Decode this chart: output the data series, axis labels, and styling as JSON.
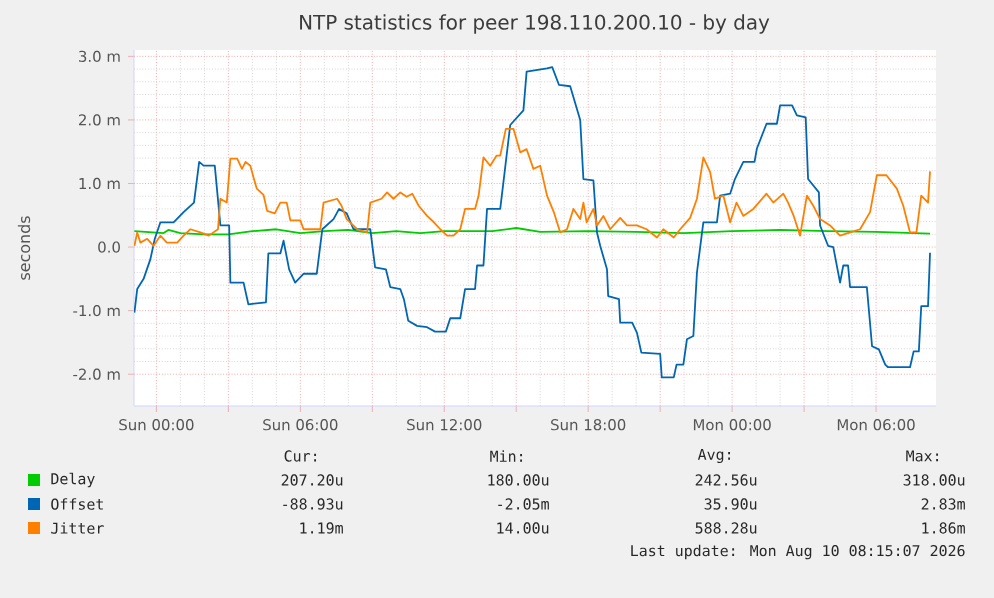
{
  "chart_data": {
    "type": "line",
    "title": "NTP statistics for peer 198.110.200.10 - by day",
    "ylabel": "seconds",
    "xlim": [
      "2026-08-08T23:04",
      "2026-08-10T08:30"
    ],
    "ylim": [
      -2.5,
      3.1
    ],
    "xticks": [
      {
        "value": "2026-08-09T00:00",
        "label": "Sun 00:00"
      },
      {
        "value": "2026-08-09T03:00",
        "label": null
      },
      {
        "value": "2026-08-09T06:00",
        "label": "Sun 06:00"
      },
      {
        "value": "2026-08-09T09:00",
        "label": null
      },
      {
        "value": "2026-08-09T12:00",
        "label": "Sun 12:00"
      },
      {
        "value": "2026-08-09T15:00",
        "label": null
      },
      {
        "value": "2026-08-09T18:00",
        "label": "Sun 18:00"
      },
      {
        "value": "2026-08-09T21:00",
        "label": null
      },
      {
        "value": "2026-08-10T00:00",
        "label": "Mon 00:00"
      },
      {
        "value": "2026-08-10T03:00",
        "label": null
      },
      {
        "value": "2026-08-10T06:00",
        "label": "Mon 06:00"
      }
    ],
    "yticks": [
      {
        "value": -2,
        "label": "-2.0 m"
      },
      {
        "value": -1,
        "label": "-1.0 m"
      },
      {
        "value": 0,
        "label": "0.0"
      },
      {
        "value": 1,
        "label": "1.0 m"
      },
      {
        "value": 2,
        "label": "2.0 m"
      },
      {
        "value": 3,
        "label": "3.0 m"
      }
    ],
    "grid": true,
    "legend": "bottom",
    "series": [
      {
        "name": "Delay",
        "color": "#00cc00",
        "x": [
          "2026-08-08T23:05",
          "2026-08-09T00:18",
          "2026-08-09T00:30",
          "2026-08-09T01:00",
          "2026-08-09T02:00",
          "2026-08-09T03:00",
          "2026-08-09T04:00",
          "2026-08-09T05:00",
          "2026-08-09T06:00",
          "2026-08-09T07:00",
          "2026-08-09T08:00",
          "2026-08-09T09:00",
          "2026-08-09T10:00",
          "2026-08-09T11:00",
          "2026-08-09T12:00",
          "2026-08-09T14:00",
          "2026-08-09T15:00",
          "2026-08-09T16:00",
          "2026-08-09T18:00",
          "2026-08-09T20:00",
          "2026-08-09T22:00",
          "2026-08-10T00:00",
          "2026-08-10T02:00",
          "2026-08-10T04:00",
          "2026-08-10T06:00",
          "2026-08-10T08:15"
        ],
        "values": [
          0.25,
          0.22,
          0.27,
          0.22,
          0.2,
          0.2,
          0.25,
          0.28,
          0.22,
          0.25,
          0.27,
          0.22,
          0.25,
          0.22,
          0.25,
          0.25,
          0.3,
          0.24,
          0.25,
          0.24,
          0.22,
          0.25,
          0.27,
          0.25,
          0.24,
          0.21
        ]
      },
      {
        "name": "Offset",
        "color": "#0066b3",
        "x": [
          "2026-08-08T23:05",
          "2026-08-08T23:12",
          "2026-08-08T23:28",
          "2026-08-08T23:45",
          "2026-08-08T23:56",
          "2026-08-09T00:10",
          "2026-08-09T00:43",
          "2026-08-09T01:08",
          "2026-08-09T01:34",
          "2026-08-09T01:47",
          "2026-08-09T01:58",
          "2026-08-09T02:26",
          "2026-08-09T02:40",
          "2026-08-09T03:02",
          "2026-08-09T03:05",
          "2026-08-09T03:38",
          "2026-08-09T03:50",
          "2026-08-09T04:34",
          "2026-08-09T04:40",
          "2026-08-09T05:10",
          "2026-08-09T05:18",
          "2026-08-09T05:32",
          "2026-08-09T05:47",
          "2026-08-09T06:08",
          "2026-08-09T06:41",
          "2026-08-09T06:55",
          "2026-08-09T07:23",
          "2026-08-09T07:37",
          "2026-08-09T07:56",
          "2026-08-09T08:13",
          "2026-08-09T08:55",
          "2026-08-09T09:07",
          "2026-08-09T09:34",
          "2026-08-09T09:45",
          "2026-08-09T10:10",
          "2026-08-09T10:19",
          "2026-08-09T10:30",
          "2026-08-09T10:52",
          "2026-08-09T11:17",
          "2026-08-09T11:37",
          "2026-08-09T12:04",
          "2026-08-09T12:15",
          "2026-08-09T12:40",
          "2026-08-09T12:52",
          "2026-08-09T13:17",
          "2026-08-09T13:22",
          "2026-08-09T13:38",
          "2026-08-09T13:47",
          "2026-08-09T14:20",
          "2026-08-09T14:28",
          "2026-08-09T14:45",
          "2026-08-09T15:18",
          "2026-08-09T15:26",
          "2026-08-09T16:17",
          "2026-08-09T16:30",
          "2026-08-09T16:47",
          "2026-08-09T17:15",
          "2026-08-09T17:40",
          "2026-08-09T17:48",
          "2026-08-09T18:13",
          "2026-08-09T18:22",
          "2026-08-09T18:30",
          "2026-08-09T18:47",
          "2026-08-09T18:50",
          "2026-08-09T19:17",
          "2026-08-09T19:20",
          "2026-08-09T19:50",
          "2026-08-09T20:02",
          "2026-08-09T20:13",
          "2026-08-09T21:00",
          "2026-08-09T21:04",
          "2026-08-09T21:34",
          "2026-08-09T21:41",
          "2026-08-09T21:58",
          "2026-08-09T22:07",
          "2026-08-09T22:23",
          "2026-08-09T22:32",
          "2026-08-09T22:48",
          "2026-08-09T23:22",
          "2026-08-09T23:30",
          "2026-08-09T23:55",
          "2026-08-10T00:07",
          "2026-08-10T00:28",
          "2026-08-10T00:56",
          "2026-08-10T01:02",
          "2026-08-10T01:26",
          "2026-08-10T01:52",
          "2026-08-10T02:00",
          "2026-08-10T02:30",
          "2026-08-10T02:42",
          "2026-08-10T03:04",
          "2026-08-10T03:10",
          "2026-08-10T03:37",
          "2026-08-10T03:40",
          "2026-08-10T04:00",
          "2026-08-10T04:13",
          "2026-08-10T04:30",
          "2026-08-10T04:38",
          "2026-08-10T04:50",
          "2026-08-10T04:55",
          "2026-08-10T05:37",
          "2026-08-10T05:50",
          "2026-08-10T06:07",
          "2026-08-10T06:23",
          "2026-08-10T06:30",
          "2026-08-10T07:25",
          "2026-08-10T07:34",
          "2026-08-10T07:47",
          "2026-08-10T07:53",
          "2026-08-10T08:10",
          "2026-08-10T08:15"
        ],
        "values": [
          -1.03,
          -0.66,
          -0.5,
          -0.19,
          0.13,
          0.39,
          0.39,
          0.55,
          0.7,
          1.34,
          1.28,
          1.28,
          0.34,
          0.34,
          -0.56,
          -0.56,
          -0.9,
          -0.87,
          -0.1,
          -0.1,
          0.1,
          -0.35,
          -0.56,
          -0.42,
          -0.42,
          0.28,
          0.44,
          0.6,
          0.53,
          0.28,
          0.28,
          -0.32,
          -0.35,
          -0.63,
          -0.66,
          -0.82,
          -1.16,
          -1.24,
          -1.26,
          -1.33,
          -1.33,
          -1.12,
          -1.12,
          -0.66,
          -0.66,
          -0.29,
          -0.29,
          0.6,
          0.6,
          1.02,
          1.92,
          2.15,
          2.76,
          2.81,
          2.83,
          2.55,
          2.53,
          2.0,
          1.07,
          1.05,
          0.23,
          0.02,
          -0.35,
          -0.77,
          -0.82,
          -1.19,
          -1.19,
          -1.35,
          -1.66,
          -1.68,
          -2.05,
          -2.05,
          -1.85,
          -1.85,
          -1.45,
          -1.4,
          -0.4,
          0.39,
          0.39,
          0.81,
          0.84,
          1.07,
          1.34,
          1.34,
          1.55,
          1.94,
          1.94,
          2.23,
          2.23,
          2.07,
          2.04,
          1.07,
          0.86,
          0.34,
          0.02,
          0.0,
          -0.56,
          -0.29,
          -0.29,
          -0.63,
          -0.63,
          -1.56,
          -1.61,
          -1.85,
          -1.89,
          -1.89,
          -1.64,
          -1.64,
          -0.93,
          -0.93,
          -0.09
        ]
      },
      {
        "name": "Jitter",
        "color": "#ff8000",
        "x": [
          "2026-08-08T23:05",
          "2026-08-08T23:12",
          "2026-08-08T23:20",
          "2026-08-08T23:37",
          "2026-08-08T23:53",
          "2026-08-09T00:10",
          "2026-08-09T00:26",
          "2026-08-09T00:52",
          "2026-08-09T01:08",
          "2026-08-09T01:25",
          "2026-08-09T01:50",
          "2026-08-09T02:11",
          "2026-08-09T02:34",
          "2026-08-09T02:40",
          "2026-08-09T02:56",
          "2026-08-09T03:05",
          "2026-08-09T03:22",
          "2026-08-09T03:34",
          "2026-08-09T03:43",
          "2026-08-09T03:55",
          "2026-08-09T04:04",
          "2026-08-09T04:11",
          "2026-08-09T04:28",
          "2026-08-09T04:37",
          "2026-08-09T04:56",
          "2026-08-09T05:10",
          "2026-08-09T05:26",
          "2026-08-09T05:35",
          "2026-08-09T06:00",
          "2026-08-09T06:08",
          "2026-08-09T06:50",
          "2026-08-09T06:58",
          "2026-08-09T07:32",
          "2026-08-09T07:43",
          "2026-08-09T07:56",
          "2026-08-09T08:22",
          "2026-08-09T08:47",
          "2026-08-09T08:55",
          "2026-08-09T09:23",
          "2026-08-09T09:37",
          "2026-08-09T09:53",
          "2026-08-09T10:10",
          "2026-08-09T10:26",
          "2026-08-09T10:40",
          "2026-08-09T10:56",
          "2026-08-09T11:17",
          "2026-08-09T11:34",
          "2026-08-09T11:50",
          "2026-08-09T12:07",
          "2026-08-09T12:23",
          "2026-08-09T12:40",
          "2026-08-09T12:52",
          "2026-08-09T13:17",
          "2026-08-09T13:26",
          "2026-08-09T13:38",
          "2026-08-09T13:55",
          "2026-08-09T14:11",
          "2026-08-09T14:20",
          "2026-08-09T14:34",
          "2026-08-09T14:53",
          "2026-08-09T15:10",
          "2026-08-09T15:26",
          "2026-08-09T15:43",
          "2026-08-09T16:00",
          "2026-08-09T16:17",
          "2026-08-09T16:34",
          "2026-08-09T16:50",
          "2026-08-09T17:07",
          "2026-08-09T17:23",
          "2026-08-09T17:40",
          "2026-08-09T17:48",
          "2026-08-09T17:56",
          "2026-08-09T18:13",
          "2026-08-09T18:22",
          "2026-08-09T18:38",
          "2026-08-09T18:55",
          "2026-08-09T19:20",
          "2026-08-09T19:37",
          "2026-08-09T20:02",
          "2026-08-09T20:26",
          "2026-08-09T20:52",
          "2026-08-09T21:08",
          "2026-08-09T21:34",
          "2026-08-09T21:50",
          "2026-08-09T22:15",
          "2026-08-09T22:32",
          "2026-08-09T22:48",
          "2026-08-09T23:05",
          "2026-08-09T23:17",
          "2026-08-09T23:38",
          "2026-08-09T23:55",
          "2026-08-10T00:11",
          "2026-08-10T00:28",
          "2026-08-10T00:53",
          "2026-08-10T01:26",
          "2026-08-10T01:43",
          "2026-08-10T02:08",
          "2026-08-10T02:20",
          "2026-08-10T02:34",
          "2026-08-10T02:50",
          "2026-08-10T03:07",
          "2026-08-10T03:23",
          "2026-08-10T03:40",
          "2026-08-10T04:05",
          "2026-08-10T04:30",
          "2026-08-10T04:55",
          "2026-08-10T05:20",
          "2026-08-10T05:45",
          "2026-08-10T06:02",
          "2026-08-10T06:26",
          "2026-08-10T06:52",
          "2026-08-10T07:08",
          "2026-08-10T07:25",
          "2026-08-10T07:41",
          "2026-08-10T07:53",
          "2026-08-10T08:10",
          "2026-08-10T08:15"
        ],
        "values": [
          0.02,
          0.23,
          0.07,
          0.13,
          0.02,
          0.18,
          0.07,
          0.07,
          0.18,
          0.28,
          0.23,
          0.18,
          0.28,
          0.76,
          0.7,
          1.39,
          1.39,
          1.23,
          1.34,
          1.28,
          1.07,
          0.92,
          0.82,
          0.57,
          0.53,
          0.7,
          0.7,
          0.42,
          0.42,
          0.28,
          0.28,
          0.7,
          0.76,
          0.65,
          0.44,
          0.28,
          0.23,
          0.7,
          0.76,
          0.86,
          0.76,
          0.86,
          0.79,
          0.84,
          0.65,
          0.49,
          0.39,
          0.28,
          0.18,
          0.18,
          0.28,
          0.6,
          0.6,
          0.81,
          1.41,
          1.28,
          1.44,
          1.44,
          1.86,
          1.86,
          1.49,
          1.54,
          1.23,
          1.28,
          0.81,
          0.55,
          0.23,
          0.28,
          0.6,
          0.44,
          0.7,
          0.39,
          0.6,
          0.34,
          0.49,
          0.28,
          0.46,
          0.34,
          0.34,
          0.28,
          0.15,
          0.28,
          0.15,
          0.28,
          0.46,
          0.76,
          1.41,
          1.18,
          0.76,
          0.81,
          0.39,
          0.7,
          0.49,
          0.6,
          0.84,
          0.7,
          0.84,
          0.7,
          0.49,
          0.18,
          0.81,
          0.65,
          0.44,
          0.34,
          0.18,
          0.23,
          0.28,
          0.55,
          1.13,
          1.13,
          0.92,
          0.65,
          0.23,
          0.23,
          0.81,
          0.7,
          1.19
        ]
      }
    ],
    "annotations": [
      "Cur:",
      "Min:",
      "Avg:",
      "Max:",
      "207.20u",
      "180.00u",
      "242.56u",
      "318.00u",
      "-88.93u",
      "-2.05m",
      "35.90u",
      "2.83m",
      "1.19m",
      "14.00u",
      "588.28u",
      "1.86m",
      "Last update: Mon Aug 10 08:15:07 2026"
    ]
  }
}
